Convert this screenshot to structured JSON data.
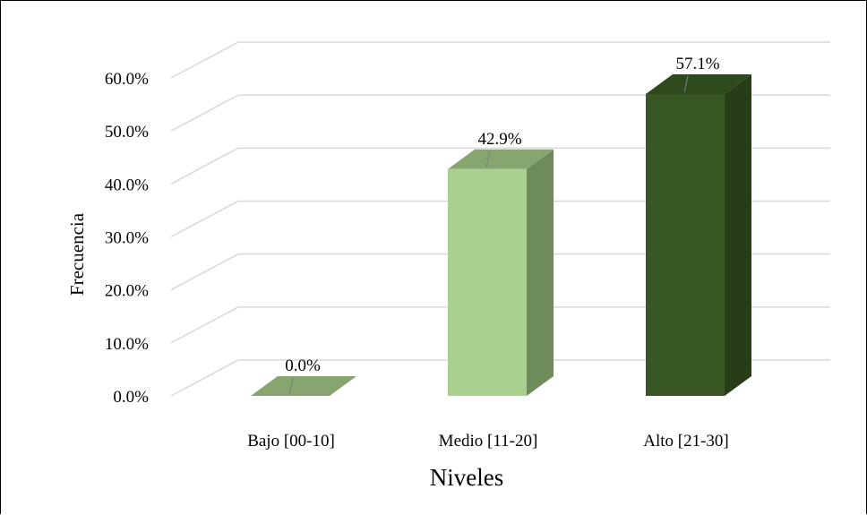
{
  "chart_data": {
    "type": "bar",
    "style": "3d-column",
    "title": "",
    "xlabel": "Niveles",
    "ylabel": "Frecuencia",
    "categories": [
      "Bajo [00-10]",
      "Medio [11-20]",
      "Alto [21-30]"
    ],
    "values": [
      0.0,
      42.9,
      57.1
    ],
    "data_labels": [
      "0.0%",
      "42.9%",
      "57.1%"
    ],
    "y_ticks": [
      "0.0%",
      "10.0%",
      "20.0%",
      "30.0%",
      "40.0%",
      "50.0%",
      "60.0%"
    ],
    "ylim": [
      0,
      60
    ],
    "grid": true,
    "legend": "none",
    "colors": {
      "bar_front": [
        "#a9d18e",
        "#a9d18e",
        "#385723"
      ],
      "bar_side": [
        "#6e8b5a",
        "#6e8b5a",
        "#263d18"
      ],
      "bar_top": [
        "#87a56f",
        "#87a56f",
        "#2e4a1c"
      ],
      "grid": "#d9d9d9"
    }
  }
}
